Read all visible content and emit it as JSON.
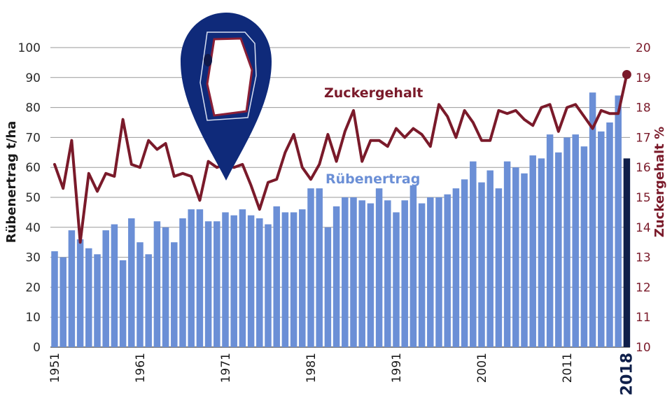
{
  "chart_data": {
    "type": "bar",
    "x": [
      1951,
      1952,
      1953,
      1954,
      1955,
      1956,
      1957,
      1958,
      1959,
      1960,
      1961,
      1962,
      1963,
      1964,
      1965,
      1966,
      1967,
      1968,
      1969,
      1970,
      1971,
      1972,
      1973,
      1974,
      1975,
      1976,
      1977,
      1978,
      1979,
      1980,
      1981,
      1982,
      1983,
      1984,
      1985,
      1986,
      1987,
      1988,
      1989,
      1990,
      1991,
      1992,
      1993,
      1994,
      1995,
      1996,
      1997,
      1998,
      1999,
      2000,
      2001,
      2002,
      2003,
      2004,
      2005,
      2006,
      2007,
      2008,
      2009,
      2010,
      2011,
      2012,
      2013,
      2014,
      2015,
      2016,
      2017,
      2018
    ],
    "x_tick_labels": [
      "1951",
      "1961",
      "1971",
      "1981",
      "1991",
      "2001",
      "2011",
      "2018"
    ],
    "xlabel": "",
    "left_axis": {
      "label": "Rübenertrag t/ha",
      "ylim": [
        0,
        100
      ],
      "ticks": [
        "0",
        "10",
        "20",
        "30",
        "40",
        "50",
        "60",
        "70",
        "80",
        "90",
        "100"
      ]
    },
    "right_axis": {
      "label": "Zuckergehalt  %",
      "ylim": [
        10,
        20
      ],
      "ticks": [
        "10",
        "11",
        "12",
        "13",
        "14",
        "15",
        "16",
        "17",
        "18",
        "19",
        "20"
      ]
    },
    "grid": true,
    "series": [
      {
        "name": "Rübenertrag",
        "type": "bar",
        "axis": "left",
        "color": "#6b8fd6",
        "highlight_color": "#0f1f4a",
        "values": [
          32,
          30,
          39,
          36,
          33,
          31,
          39,
          41,
          29,
          43,
          35,
          31,
          42,
          40,
          35,
          43,
          46,
          46,
          42,
          42,
          45,
          44,
          46,
          44,
          43,
          41,
          47,
          45,
          45,
          46,
          53,
          53,
          40,
          47,
          50,
          50,
          49,
          48,
          53,
          49,
          45,
          49,
          54,
          48,
          50,
          50,
          51,
          53,
          56,
          62,
          55,
          59,
          53,
          62,
          60,
          58,
          64,
          63,
          71,
          65,
          70,
          71,
          67,
          85,
          72,
          75,
          84,
          63
        ]
      },
      {
        "name": "Zuckergehalt",
        "type": "line",
        "axis": "right",
        "color": "#7a1a2a",
        "values": [
          16.1,
          15.3,
          16.9,
          13.5,
          15.8,
          15.2,
          15.8,
          15.7,
          17.6,
          16.1,
          16.0,
          16.9,
          16.6,
          16.8,
          15.7,
          15.8,
          15.7,
          14.9,
          16.2,
          16.0,
          16.1,
          16.0,
          16.1,
          15.4,
          14.6,
          15.5,
          15.6,
          16.5,
          17.1,
          16.0,
          15.6,
          16.1,
          17.1,
          16.2,
          17.2,
          17.9,
          16.2,
          16.9,
          16.9,
          16.7,
          17.3,
          17.0,
          17.3,
          17.1,
          16.7,
          18.1,
          17.7,
          17.0,
          17.9,
          17.5,
          16.9,
          16.9,
          17.9,
          17.8,
          17.9,
          17.6,
          17.4,
          18.0,
          18.1,
          17.2,
          18.0,
          18.1,
          17.7,
          17.3,
          17.9,
          17.8,
          17.8,
          19.1
        ]
      }
    ]
  }
}
